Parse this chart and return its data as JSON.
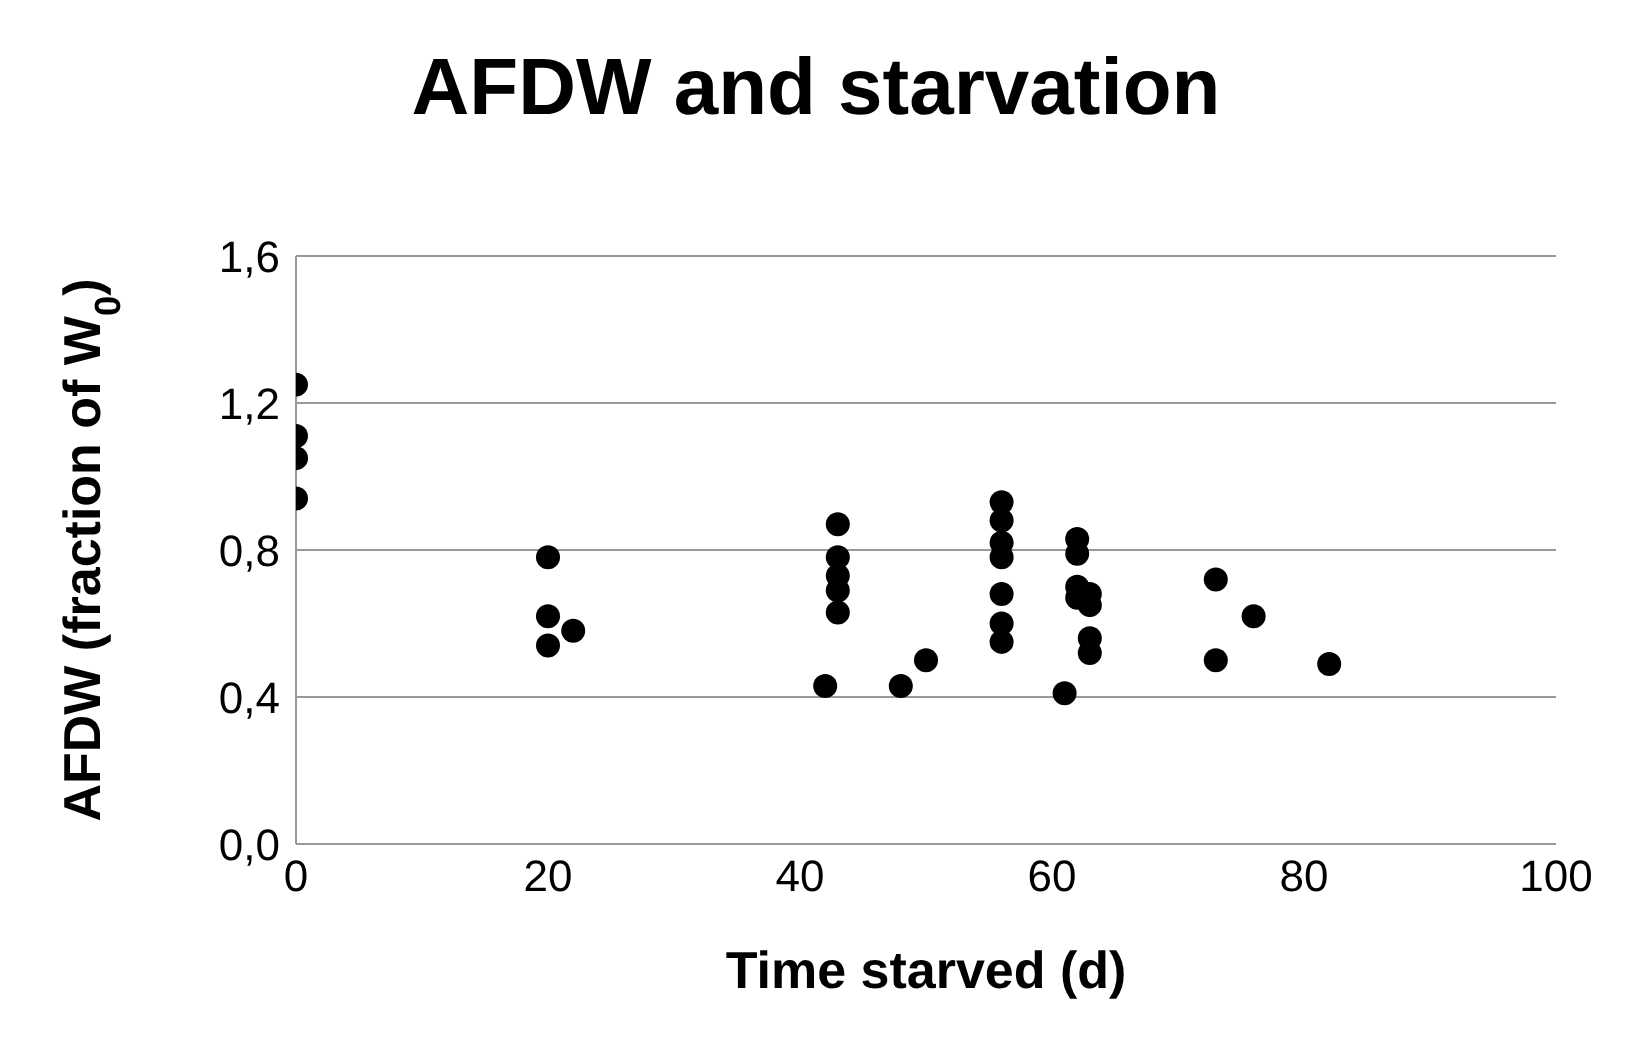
{
  "chart_data": {
    "type": "scatter",
    "title": "AFDW and starvation",
    "xlabel": "Time starved (d)",
    "ylabel": "AFDW (fraction of W$_{0}$)",
    "x": [
      0,
      0,
      0,
      0,
      20,
      20,
      22,
      20,
      43,
      43,
      43,
      43,
      43,
      42,
      48,
      50,
      56,
      56,
      56,
      56,
      56,
      56,
      56,
      62,
      62,
      62,
      62,
      63,
      63,
      63,
      63,
      61,
      73,
      73,
      76,
      82
    ],
    "series": [
      {
        "color": "#000000",
        "values": [
          1.25,
          1.11,
          1.05,
          0.94,
          0.78,
          0.62,
          0.58,
          0.54,
          0.87,
          0.78,
          0.73,
          0.69,
          0.63,
          0.43,
          0.43,
          0.5,
          0.93,
          0.88,
          0.82,
          0.78,
          0.68,
          0.6,
          0.55,
          0.83,
          0.79,
          0.7,
          0.67,
          0.68,
          0.65,
          0.56,
          0.52,
          0.41,
          0.72,
          0.5,
          0.62,
          0.49
        ]
      }
    ],
    "xlim": [
      0,
      100
    ],
    "xticks": [
      0,
      20,
      40,
      60,
      80,
      100
    ],
    "ylim": [
      0,
      1.6
    ],
    "yticks": [
      {
        "value": 0,
        "label": "0,0"
      },
      {
        "value": 0.4,
        "label": "0,4"
      },
      {
        "value": 0.8,
        "label": "0,8"
      },
      {
        "value": 1.2,
        "label": "1,2"
      },
      {
        "value": 1.6,
        "label": "1,6"
      }
    ],
    "grid": "y",
    "marker": "circle",
    "legend": false
  }
}
